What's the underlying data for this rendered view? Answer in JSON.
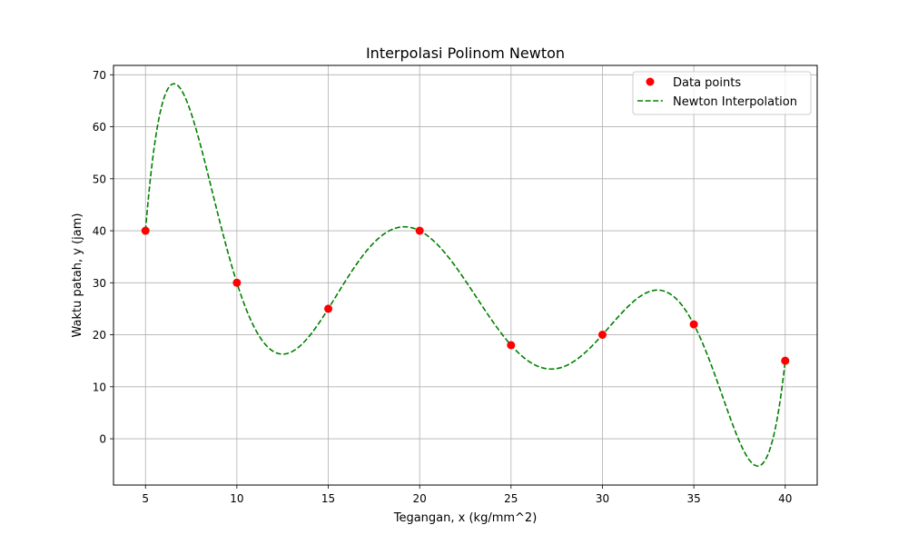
{
  "chart_data": {
    "type": "line",
    "title": "Interpolasi Polinom Newton",
    "xlabel": "Tegangan, x (kg/mm^2)",
    "ylabel": "Waktu patah, y (jam)",
    "xlim": [
      3.25,
      41.75
    ],
    "ylim": [
      -8.9,
      71.8
    ],
    "x_ticks": [
      5,
      10,
      15,
      20,
      25,
      30,
      35,
      40
    ],
    "y_ticks": [
      0,
      10,
      20,
      30,
      40,
      50,
      60,
      70
    ],
    "grid": true,
    "legend_position": "top-right",
    "series": [
      {
        "name": "Data points",
        "kind": "scatter",
        "color": "#ff0000",
        "x": [
          5,
          10,
          15,
          20,
          25,
          30,
          35,
          40
        ],
        "y": [
          40,
          30,
          25,
          40,
          18,
          20,
          22,
          15
        ]
      },
      {
        "name": "Newton Interpolation",
        "kind": "line",
        "style": "dashed",
        "color": "#008000",
        "interpolates": "Data points"
      }
    ]
  }
}
